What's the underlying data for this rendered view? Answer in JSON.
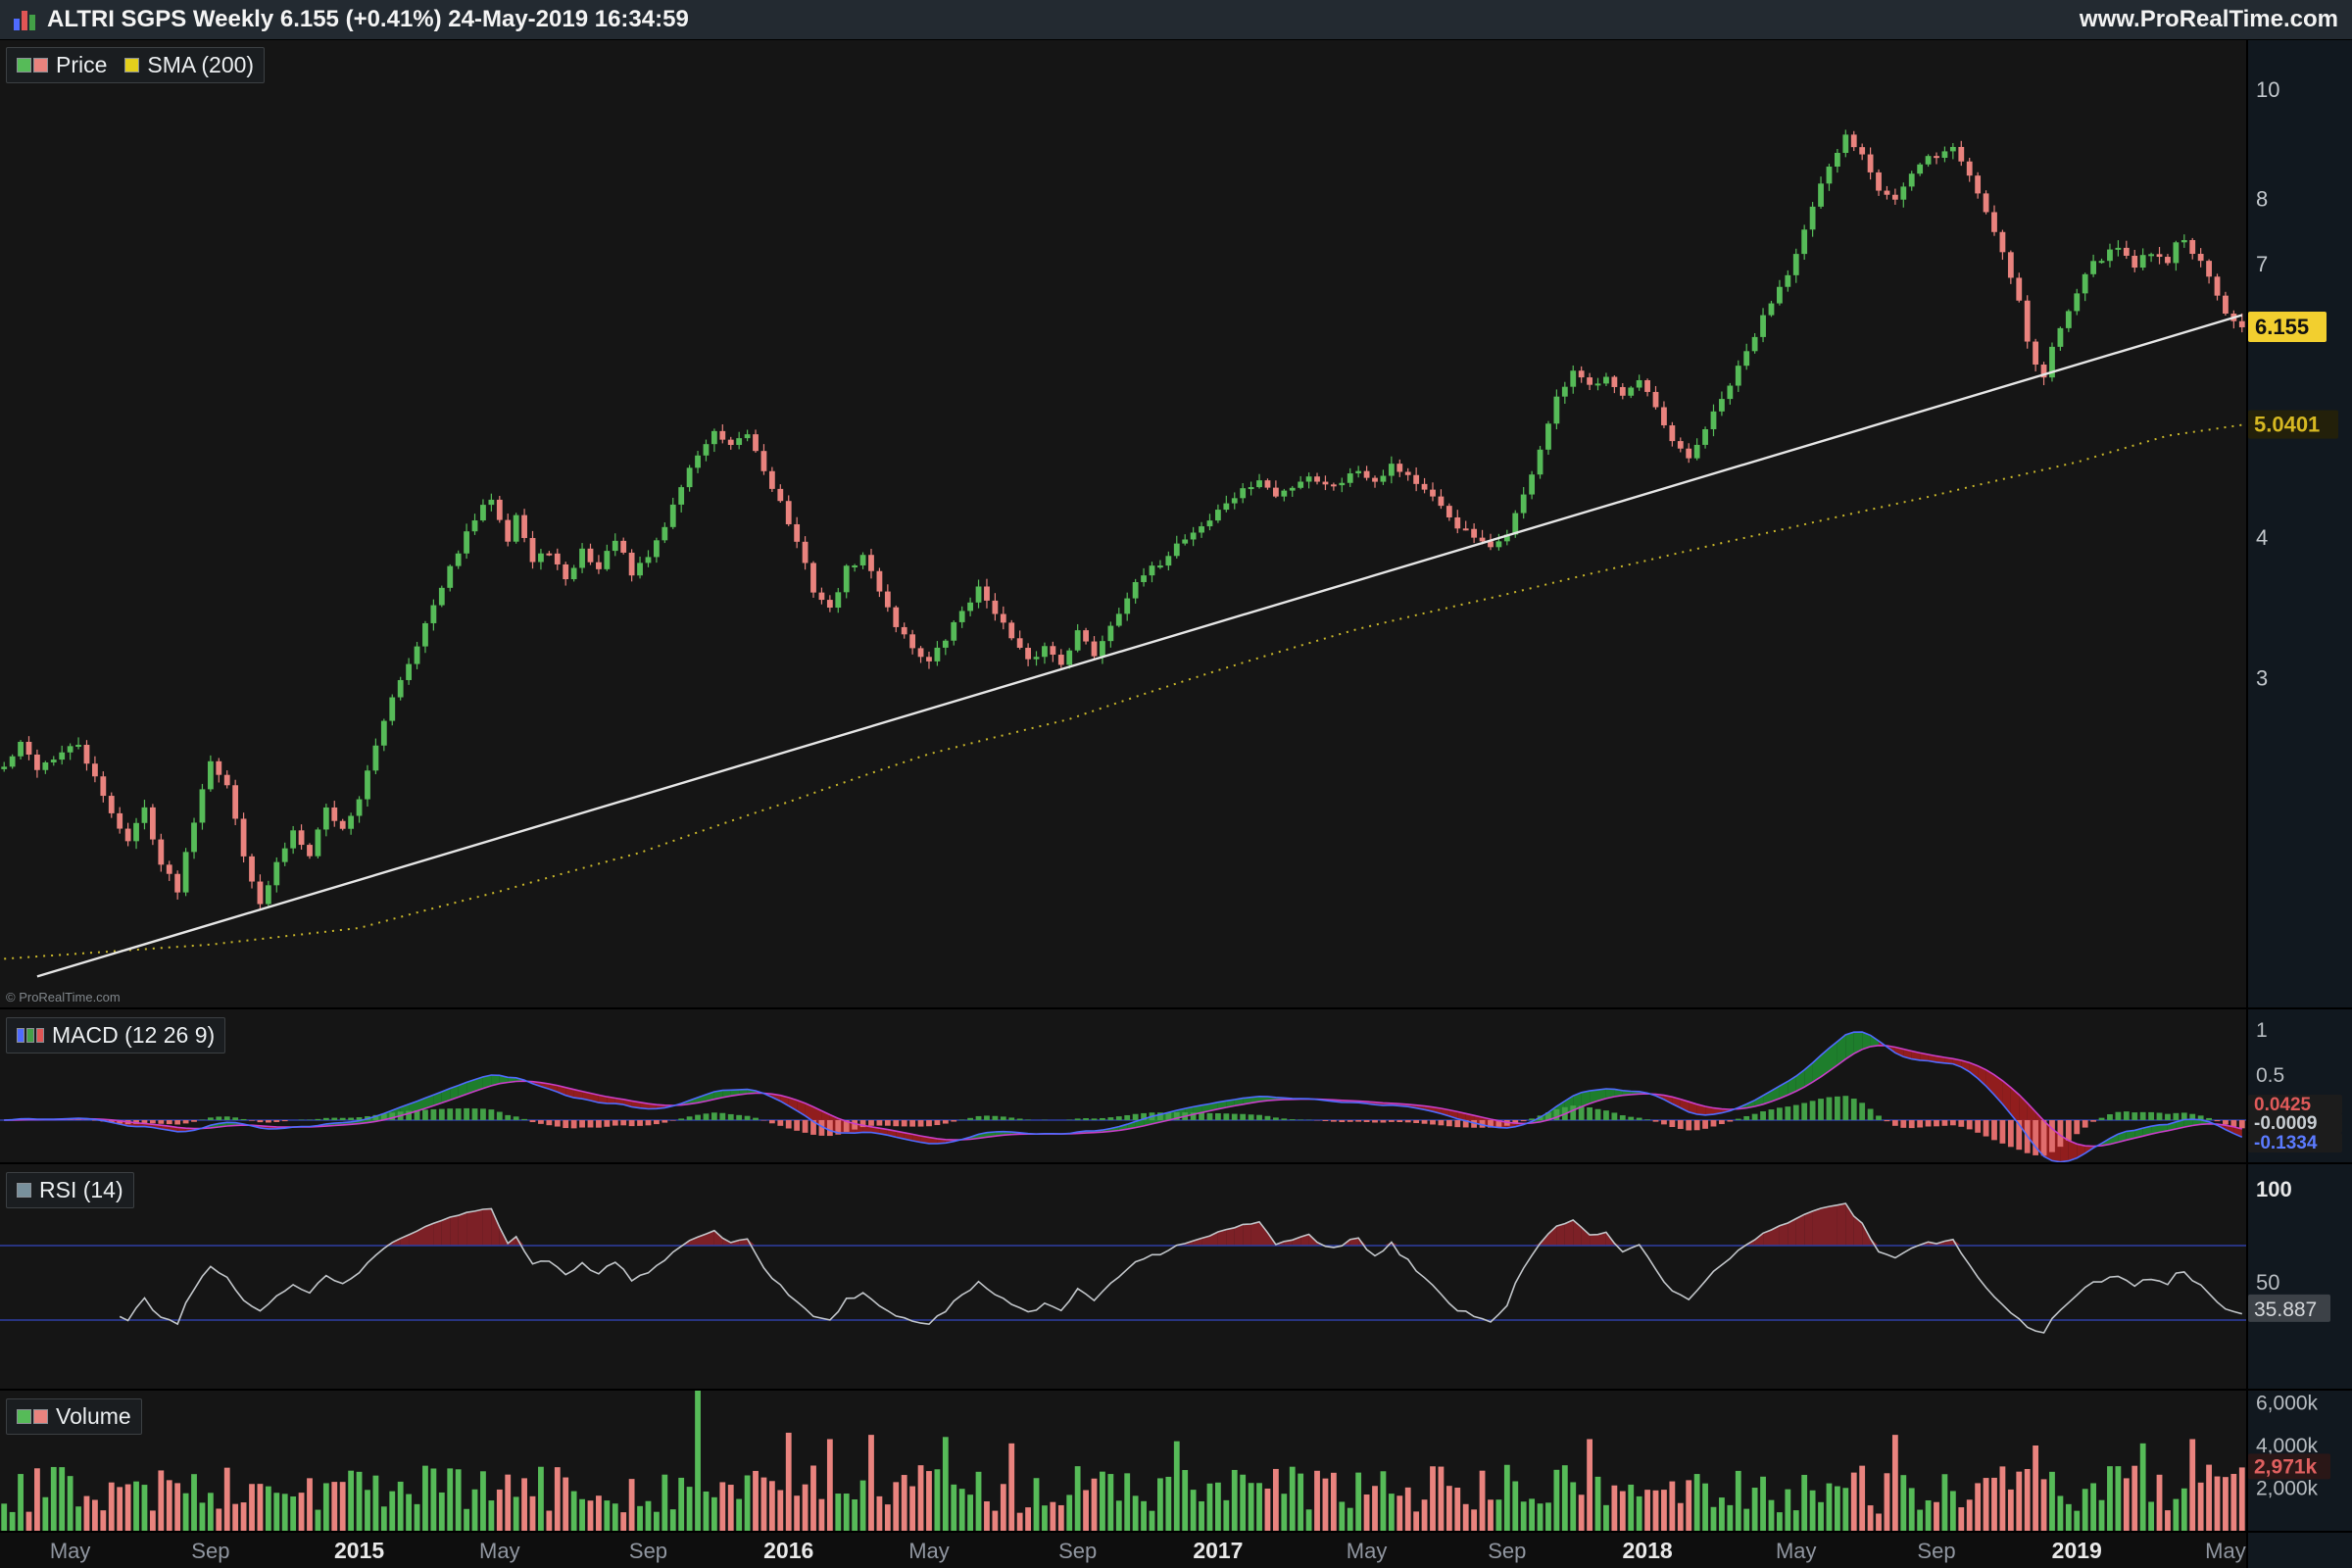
{
  "header": {
    "title": "ALTRI SGPS Weekly 6.155 (+0.41%) 24-May-2019 16:34:59",
    "website": "www.ProRealTime.com"
  },
  "copyright": "© ProRealTime.com",
  "legends": {
    "price": {
      "label": "Price",
      "sma_label": "SMA (200)"
    },
    "macd": {
      "label": "MACD (12 26 9)"
    },
    "rsi": {
      "label": "RSI (14)"
    },
    "volume": {
      "label": "Volume"
    }
  },
  "colors": {
    "up": "#56bb58",
    "down": "#e9837e",
    "sma": "#c9b72b",
    "trendline": "#e6e6e6",
    "macd_line": "#4f6bff",
    "macd_signal": "#c93ec9",
    "macd_fill_up": "#1f8a2f",
    "macd_fill_down": "#9e1e1e",
    "hist_up": "#43a047",
    "hist_down": "#e06c6c",
    "rsi_line": "#c2c6ca",
    "rsi_fill": "#7c2026",
    "level_line": "#2e3fa3",
    "axis_text": "#b8bdc2",
    "month_text": "#9096a0",
    "year_text": "#e9e9e9",
    "panel_bg": "#151515",
    "axis_bg": "#11181f",
    "xaxis_bg": "#0e0e0e",
    "last_badge_bg": "#f2cf2f",
    "sma_text": "#d6b822"
  },
  "chart_data": [
    {
      "type": "candlestick",
      "title": "Price",
      "scale": "log",
      "weeks_total": 272,
      "last_close": 6.155,
      "y_axis": {
        "ticks": [
          {
            "value": 10,
            "label": "10"
          },
          {
            "value": 8,
            "label": "8"
          },
          {
            "value": 7,
            "label": "7"
          },
          {
            "value": 4,
            "label": "4"
          },
          {
            "value": 3,
            "label": "3"
          }
        ],
        "last_price_badge": {
          "text": "6.155",
          "value": 6.155
        },
        "sma_badge": {
          "text": "5.0401",
          "value": 5.0401
        }
      },
      "x_axis": {
        "tick_weeks": [
          8,
          25,
          43,
          60,
          78,
          95,
          112,
          130,
          147,
          165,
          182,
          199,
          217,
          234,
          251,
          269
        ],
        "tick_labels": [
          "May",
          "Sep",
          "2015",
          "May",
          "Sep",
          "2016",
          "May",
          "Sep",
          "2017",
          "May",
          "Sep",
          "2018",
          "May",
          "Sep",
          "2019",
          "May"
        ],
        "year_indices": [
          2,
          5,
          8,
          11,
          14
        ]
      },
      "close_anchors": [
        [
          0,
          2.5
        ],
        [
          2,
          2.62
        ],
        [
          4,
          2.5
        ],
        [
          6,
          2.55
        ],
        [
          9,
          2.62
        ],
        [
          12,
          2.35
        ],
        [
          15,
          2.15
        ],
        [
          17,
          2.3
        ],
        [
          19,
          2.05
        ],
        [
          21,
          1.95
        ],
        [
          23,
          2.25
        ],
        [
          25,
          2.55
        ],
        [
          27,
          2.4
        ],
        [
          29,
          2.1
        ],
        [
          31,
          1.88
        ],
        [
          33,
          2.05
        ],
        [
          35,
          2.2
        ],
        [
          37,
          2.1
        ],
        [
          39,
          2.3
        ],
        [
          41,
          2.2
        ],
        [
          43,
          2.35
        ],
        [
          45,
          2.6
        ],
        [
          47,
          2.9
        ],
        [
          49,
          3.1
        ],
        [
          51,
          3.35
        ],
        [
          53,
          3.6
        ],
        [
          55,
          3.9
        ],
        [
          57,
          4.15
        ],
        [
          59,
          4.35
        ],
        [
          61,
          4.0
        ],
        [
          62,
          4.2
        ],
        [
          64,
          3.8
        ],
        [
          66,
          3.9
        ],
        [
          68,
          3.65
        ],
        [
          70,
          3.9
        ],
        [
          72,
          3.75
        ],
        [
          74,
          4.0
        ],
        [
          76,
          3.7
        ],
        [
          78,
          3.85
        ],
        [
          80,
          4.1
        ],
        [
          82,
          4.45
        ],
        [
          84,
          4.75
        ],
        [
          86,
          4.95
        ],
        [
          88,
          4.8
        ],
        [
          90,
          4.95
        ],
        [
          92,
          4.6
        ],
        [
          94,
          4.3
        ],
        [
          96,
          3.95
        ],
        [
          98,
          3.6
        ],
        [
          100,
          3.45
        ],
        [
          102,
          3.75
        ],
        [
          104,
          3.85
        ],
        [
          106,
          3.6
        ],
        [
          108,
          3.35
        ],
        [
          110,
          3.2
        ],
        [
          112,
          3.1
        ],
        [
          114,
          3.25
        ],
        [
          116,
          3.45
        ],
        [
          118,
          3.6
        ],
        [
          120,
          3.45
        ],
        [
          122,
          3.25
        ],
        [
          124,
          3.1
        ],
        [
          126,
          3.2
        ],
        [
          128,
          3.1
        ],
        [
          130,
          3.3
        ],
        [
          132,
          3.15
        ],
        [
          134,
          3.35
        ],
        [
          136,
          3.55
        ],
        [
          138,
          3.7
        ],
        [
          140,
          3.8
        ],
        [
          142,
          3.95
        ],
        [
          144,
          4.05
        ],
        [
          146,
          4.15
        ],
        [
          148,
          4.3
        ],
        [
          150,
          4.4
        ],
        [
          152,
          4.5
        ],
        [
          154,
          4.35
        ],
        [
          156,
          4.45
        ],
        [
          158,
          4.55
        ],
        [
          160,
          4.45
        ],
        [
          162,
          4.5
        ],
        [
          164,
          4.6
        ],
        [
          166,
          4.5
        ],
        [
          168,
          4.65
        ],
        [
          170,
          4.55
        ],
        [
          172,
          4.4
        ],
        [
          174,
          4.25
        ],
        [
          176,
          4.1
        ],
        [
          178,
          4.0
        ],
        [
          180,
          3.9
        ],
        [
          182,
          4.05
        ],
        [
          184,
          4.35
        ],
        [
          186,
          4.8
        ],
        [
          188,
          5.3
        ],
        [
          190,
          5.6
        ],
        [
          192,
          5.45
        ],
        [
          194,
          5.6
        ],
        [
          196,
          5.35
        ],
        [
          198,
          5.5
        ],
        [
          200,
          5.2
        ],
        [
          202,
          4.85
        ],
        [
          204,
          4.7
        ],
        [
          206,
          5.0
        ],
        [
          208,
          5.3
        ],
        [
          210,
          5.65
        ],
        [
          212,
          6.05
        ],
        [
          214,
          6.5
        ],
        [
          216,
          6.9
        ],
        [
          218,
          7.5
        ],
        [
          220,
          8.2
        ],
        [
          222,
          8.8
        ],
        [
          223,
          9.1
        ],
        [
          225,
          8.8
        ],
        [
          227,
          8.2
        ],
        [
          229,
          8.0
        ],
        [
          231,
          8.4
        ],
        [
          233,
          8.7
        ],
        [
          235,
          8.8
        ],
        [
          236,
          8.9
        ],
        [
          238,
          8.4
        ],
        [
          240,
          7.8
        ],
        [
          242,
          7.2
        ],
        [
          244,
          6.5
        ],
        [
          245,
          6.0
        ],
        [
          246,
          5.7
        ],
        [
          247,
          5.55
        ],
        [
          248,
          5.9
        ],
        [
          250,
          6.4
        ],
        [
          252,
          6.9
        ],
        [
          254,
          7.1
        ],
        [
          256,
          7.25
        ],
        [
          258,
          7.0
        ],
        [
          260,
          7.2
        ],
        [
          262,
          7.05
        ],
        [
          263,
          7.3
        ],
        [
          264,
          7.35
        ],
        [
          265,
          7.2
        ],
        [
          266,
          7.0
        ],
        [
          267,
          6.8
        ],
        [
          268,
          6.55
        ],
        [
          269,
          6.3
        ],
        [
          271,
          6.155
        ]
      ],
      "sma_anchors": [
        [
          0,
          1.69
        ],
        [
          25,
          1.74
        ],
        [
          43,
          1.8
        ],
        [
          60,
          1.94
        ],
        [
          77,
          2.1
        ],
        [
          95,
          2.33
        ],
        [
          112,
          2.57
        ],
        [
          129,
          2.76
        ],
        [
          147,
          3.05
        ],
        [
          164,
          3.32
        ],
        [
          181,
          3.55
        ],
        [
          199,
          3.82
        ],
        [
          216,
          4.08
        ],
        [
          233,
          4.35
        ],
        [
          251,
          4.67
        ],
        [
          262,
          4.93
        ],
        [
          271,
          5.04
        ]
      ],
      "trendline": {
        "from_week": 4,
        "from_price": 1.63,
        "to_week": 271,
        "to_price": 6.31
      }
    },
    {
      "type": "macd",
      "params": "12 26 9",
      "computed_from": "price_closes",
      "y_axis": {
        "ticks": [
          {
            "value": 1,
            "label": "1"
          },
          {
            "value": 0.5,
            "label": "0.5"
          }
        ],
        "value_badges": [
          {
            "text": "0.0425",
            "color": "#e05a5a"
          },
          {
            "text": "-0.0009",
            "color": "#c8cdd2"
          },
          {
            "text": "-0.1334",
            "color": "#5b7bff"
          }
        ]
      }
    },
    {
      "type": "rsi",
      "period": 14,
      "levels": [
        70,
        30
      ],
      "y_axis": {
        "ticks": [
          {
            "value": 100,
            "label": "100",
            "bold": true
          },
          {
            "value": 50,
            "label": "50"
          }
        ],
        "current_badge": {
          "text": "35.887",
          "value": 35.887
        }
      }
    },
    {
      "type": "volume",
      "y_axis": {
        "ticks": [
          {
            "value": 6000,
            "label": "6,000k"
          },
          {
            "value": 4000,
            "label": "4,000k"
          },
          {
            "value": 2000,
            "label": "2,000k"
          }
        ],
        "current_badge": {
          "text": "2,971k",
          "value": 2971
        }
      },
      "base_range_k": [
        800,
        3100
      ],
      "spikes_k": [
        [
          84,
          6600
        ],
        [
          95,
          4600
        ],
        [
          100,
          4300
        ],
        [
          105,
          4500
        ],
        [
          114,
          4400
        ],
        [
          122,
          4100
        ],
        [
          142,
          4200
        ],
        [
          192,
          4300
        ],
        [
          229,
          4500
        ],
        [
          246,
          4000
        ],
        [
          259,
          4100
        ],
        [
          265,
          4300
        ],
        [
          271,
          2971
        ]
      ]
    }
  ]
}
